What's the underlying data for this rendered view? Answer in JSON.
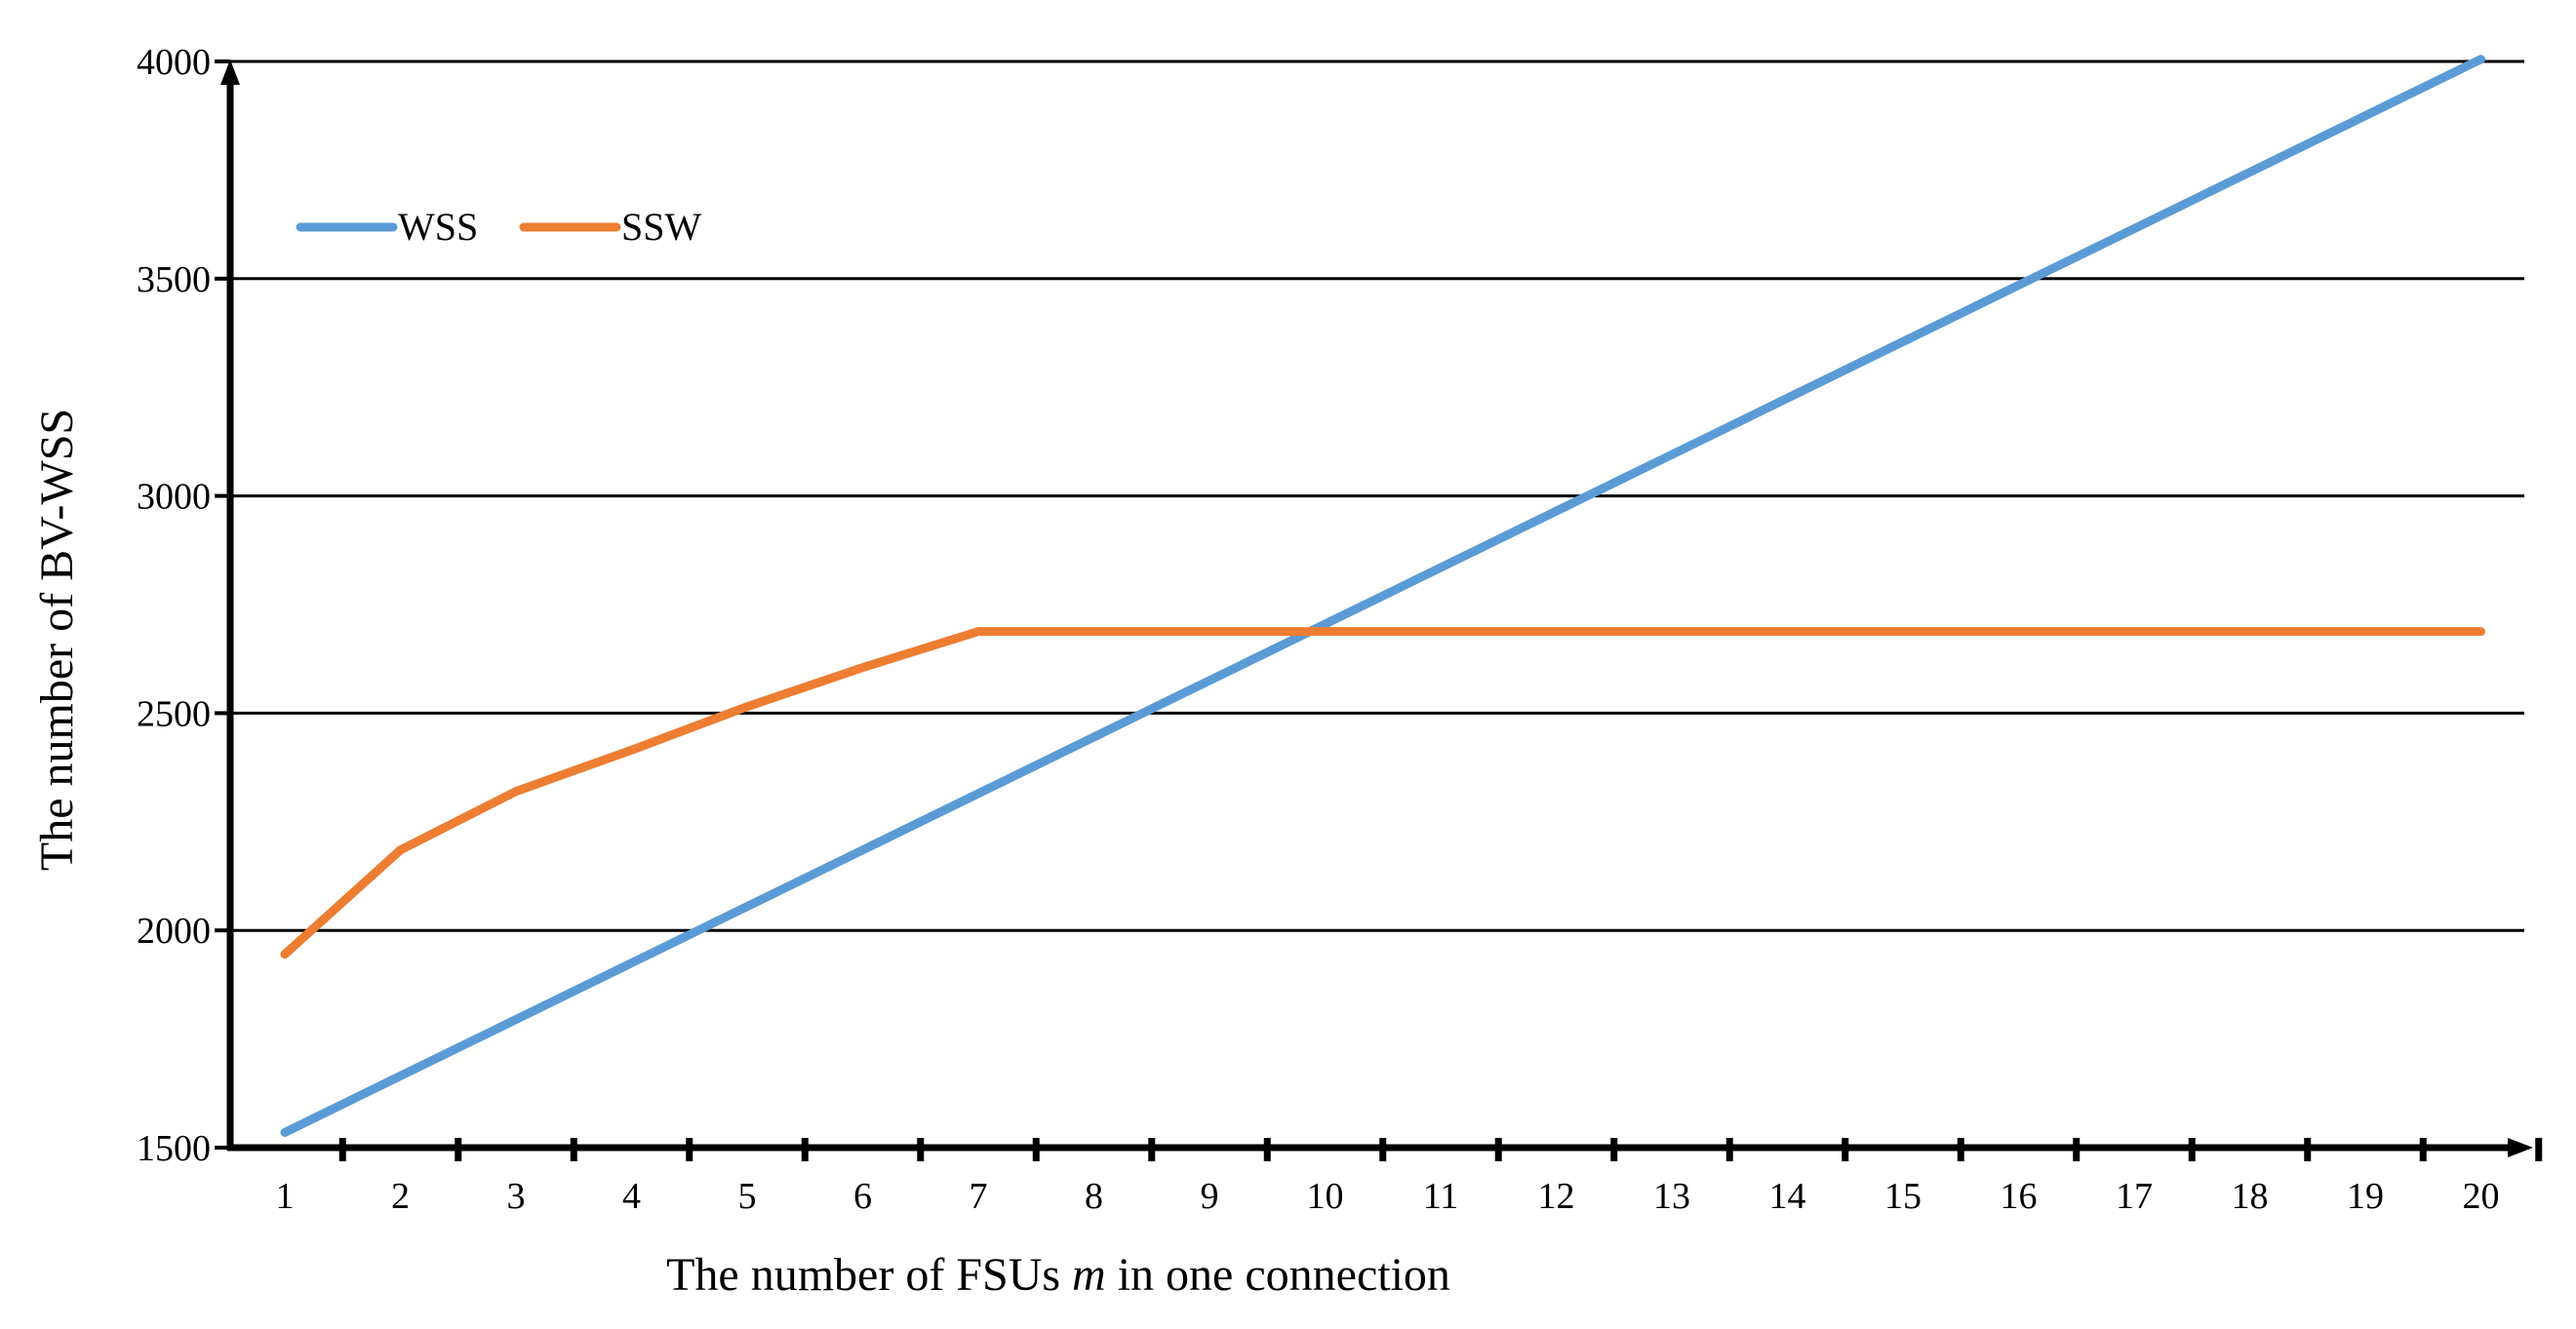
{
  "chart_data": {
    "type": "line",
    "x": [
      1,
      2,
      3,
      4,
      5,
      6,
      7,
      8,
      9,
      10,
      11,
      12,
      13,
      14,
      15,
      16,
      17,
      18,
      19,
      20
    ],
    "x_tick_labels": [
      "1",
      "2",
      "3",
      "4",
      "5",
      "6",
      "7",
      "8",
      "9",
      "10",
      "11",
      "12",
      "13",
      "14",
      "15",
      "16",
      "17",
      "18",
      "19",
      "20"
    ],
    "y_tick_labels": [
      "1500",
      "2000",
      "2500",
      "3000",
      "3500",
      "4000"
    ],
    "y_ticks": [
      1500,
      2000,
      2500,
      3000,
      3500,
      4000
    ],
    "ylim": [
      1500,
      4000
    ],
    "xlabel": {
      "prefix": "The number of FSUs ",
      "var": "m",
      "suffix": " in one connection"
    },
    "ylabel": "The number of BV-WSS",
    "grid": true,
    "legend_position": "top-left",
    "series": [
      {
        "name": "WSS",
        "color": "#5B9BD5",
        "values": [
          1535,
          1665,
          1795,
          1925,
          2055,
          2185,
          2315,
          2445,
          2575,
          2705,
          2835,
          2965,
          3095,
          3225,
          3355,
          3485,
          3615,
          3745,
          3875,
          4005
        ]
      },
      {
        "name": "SSW",
        "color": "#ED7D31",
        "values": [
          1945,
          2185,
          2320,
          2415,
          2515,
          2605,
          2688,
          2688,
          2688,
          2688,
          2688,
          2688,
          2688,
          2688,
          2688,
          2688,
          2688,
          2688,
          2688,
          2688
        ]
      }
    ]
  }
}
